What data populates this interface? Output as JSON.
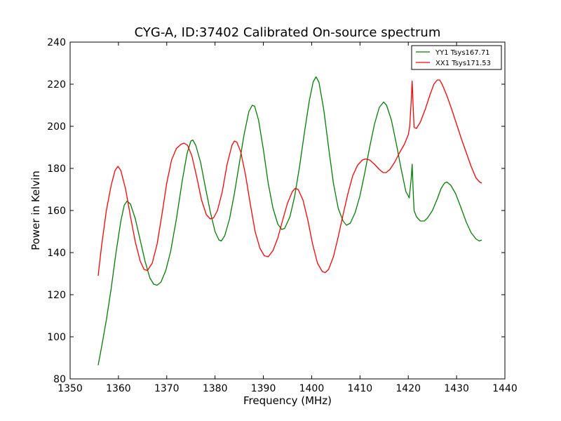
{
  "chart_data": {
    "type": "line",
    "title": "CYG-A, ID:37402 Calibrated On-source spectrum",
    "xlabel": "Frequency (MHz)",
    "ylabel": "Power in Kelvin",
    "xlim": [
      1350,
      1440
    ],
    "ylim": [
      80,
      240
    ],
    "xticks": [
      1350,
      1360,
      1370,
      1380,
      1390,
      1400,
      1410,
      1420,
      1430,
      1440
    ],
    "yticks": [
      80,
      100,
      120,
      140,
      160,
      180,
      200,
      220,
      240
    ],
    "grid": false,
    "legend_position": "top-right",
    "series": [
      {
        "name": "YY1 Tsys167.71",
        "color": "#008000",
        "points": [
          [
            1355.8,
            86.5
          ],
          [
            1356.5,
            95
          ],
          [
            1357.5,
            108
          ],
          [
            1358.5,
            123
          ],
          [
            1359.5,
            140
          ],
          [
            1360.5,
            155
          ],
          [
            1361.2,
            162.5
          ],
          [
            1361.8,
            164.5
          ],
          [
            1362.5,
            163
          ],
          [
            1363.5,
            156
          ],
          [
            1364.5,
            146
          ],
          [
            1365.5,
            136
          ],
          [
            1366.5,
            128
          ],
          [
            1367.3,
            125
          ],
          [
            1368.0,
            124.5
          ],
          [
            1368.8,
            126
          ],
          [
            1369.8,
            131.5
          ],
          [
            1370.8,
            140.5
          ],
          [
            1372.0,
            156
          ],
          [
            1373.2,
            174
          ],
          [
            1374.2,
            187
          ],
          [
            1375.0,
            193
          ],
          [
            1375.4,
            193.5
          ],
          [
            1376.0,
            191
          ],
          [
            1377.0,
            183
          ],
          [
            1378.0,
            171
          ],
          [
            1379.0,
            159.5
          ],
          [
            1380.0,
            150
          ],
          [
            1380.8,
            146
          ],
          [
            1381.3,
            145.5
          ],
          [
            1382.0,
            148
          ],
          [
            1383.0,
            156
          ],
          [
            1384.0,
            168
          ],
          [
            1385.0,
            182
          ],
          [
            1386.0,
            196
          ],
          [
            1387.0,
            207
          ],
          [
            1387.7,
            210
          ],
          [
            1388.2,
            209.5
          ],
          [
            1389.0,
            203
          ],
          [
            1390.0,
            189
          ],
          [
            1391.0,
            173
          ],
          [
            1392.0,
            161
          ],
          [
            1393.0,
            153.5
          ],
          [
            1393.8,
            151
          ],
          [
            1394.4,
            151.5
          ],
          [
            1395.5,
            157
          ],
          [
            1396.5,
            167
          ],
          [
            1397.5,
            181
          ],
          [
            1398.5,
            197
          ],
          [
            1399.5,
            212
          ],
          [
            1400.3,
            221
          ],
          [
            1400.9,
            223.5
          ],
          [
            1401.5,
            221
          ],
          [
            1402.5,
            208
          ],
          [
            1403.5,
            190
          ],
          [
            1404.5,
            173
          ],
          [
            1405.5,
            161
          ],
          [
            1406.5,
            155
          ],
          [
            1407.2,
            153
          ],
          [
            1408.0,
            154
          ],
          [
            1409.0,
            159
          ],
          [
            1410.0,
            167
          ],
          [
            1411.0,
            178
          ],
          [
            1412.0,
            190
          ],
          [
            1413.0,
            201
          ],
          [
            1414.0,
            209
          ],
          [
            1414.9,
            211.5
          ],
          [
            1415.5,
            210
          ],
          [
            1416.5,
            203
          ],
          [
            1417.5,
            192
          ],
          [
            1418.5,
            180
          ],
          [
            1419.5,
            169
          ],
          [
            1420.2,
            166
          ],
          [
            1420.6,
            175
          ],
          [
            1420.8,
            182
          ],
          [
            1421.0,
            170
          ],
          [
            1421.2,
            160
          ],
          [
            1421.7,
            157
          ],
          [
            1422.5,
            155
          ],
          [
            1423.3,
            155
          ],
          [
            1424.0,
            156.5
          ],
          [
            1425.0,
            160
          ],
          [
            1426.0,
            165.5
          ],
          [
            1426.8,
            170.5
          ],
          [
            1427.5,
            173
          ],
          [
            1428.0,
            173.5
          ],
          [
            1428.8,
            172
          ],
          [
            1429.8,
            168
          ],
          [
            1430.8,
            162
          ],
          [
            1432.0,
            154.5
          ],
          [
            1433.0,
            149.5
          ],
          [
            1434.0,
            146.5
          ],
          [
            1434.7,
            145.5
          ],
          [
            1435.2,
            146
          ]
        ]
      },
      {
        "name": "XX1 Tsys171.53",
        "color": "#ff0000",
        "points": [
          [
            1355.8,
            129
          ],
          [
            1356.5,
            143
          ],
          [
            1357.5,
            160
          ],
          [
            1358.5,
            172
          ],
          [
            1359.3,
            179
          ],
          [
            1359.9,
            181
          ],
          [
            1360.5,
            179
          ],
          [
            1361.5,
            170
          ],
          [
            1362.5,
            157
          ],
          [
            1363.5,
            145
          ],
          [
            1364.5,
            136
          ],
          [
            1365.3,
            132
          ],
          [
            1366.0,
            131.5
          ],
          [
            1367.0,
            135
          ],
          [
            1368.0,
            144
          ],
          [
            1369.0,
            158
          ],
          [
            1370.0,
            173
          ],
          [
            1371.0,
            184
          ],
          [
            1372.0,
            189.5
          ],
          [
            1373.0,
            191.5
          ],
          [
            1373.6,
            192
          ],
          [
            1374.3,
            191
          ],
          [
            1375.2,
            186
          ],
          [
            1376.2,
            176
          ],
          [
            1377.2,
            165
          ],
          [
            1378.2,
            158
          ],
          [
            1379.0,
            156
          ],
          [
            1379.7,
            156.5
          ],
          [
            1380.5,
            160
          ],
          [
            1381.5,
            169
          ],
          [
            1382.5,
            182
          ],
          [
            1383.5,
            191
          ],
          [
            1384.0,
            193
          ],
          [
            1384.5,
            192.5
          ],
          [
            1385.3,
            188
          ],
          [
            1386.3,
            177
          ],
          [
            1387.3,
            163
          ],
          [
            1388.3,
            150
          ],
          [
            1389.3,
            142
          ],
          [
            1390.2,
            138.5
          ],
          [
            1391.0,
            138
          ],
          [
            1392.0,
            141
          ],
          [
            1393.0,
            147
          ],
          [
            1394.0,
            155.5
          ],
          [
            1395.0,
            163.5
          ],
          [
            1396.0,
            169
          ],
          [
            1396.6,
            170.5
          ],
          [
            1397.2,
            170
          ],
          [
            1398.2,
            165
          ],
          [
            1399.2,
            155.5
          ],
          [
            1400.2,
            144
          ],
          [
            1401.2,
            135
          ],
          [
            1402.2,
            131
          ],
          [
            1402.8,
            130.5
          ],
          [
            1403.5,
            132
          ],
          [
            1404.5,
            138
          ],
          [
            1405.5,
            147.5
          ],
          [
            1406.5,
            158
          ],
          [
            1407.5,
            168
          ],
          [
            1408.5,
            176.5
          ],
          [
            1409.5,
            181.5
          ],
          [
            1410.5,
            184
          ],
          [
            1411.2,
            184.5
          ],
          [
            1412.0,
            184
          ],
          [
            1413.0,
            182
          ],
          [
            1414.0,
            179.5
          ],
          [
            1414.8,
            178
          ],
          [
            1415.4,
            178
          ],
          [
            1416.2,
            179.5
          ],
          [
            1417.2,
            183
          ],
          [
            1418.2,
            187.5
          ],
          [
            1419.2,
            191.5
          ],
          [
            1420.0,
            196
          ],
          [
            1420.3,
            200
          ],
          [
            1420.6,
            212
          ],
          [
            1420.8,
            221.5
          ],
          [
            1421.0,
            210
          ],
          [
            1421.2,
            199.5
          ],
          [
            1421.7,
            199
          ],
          [
            1422.5,
            202
          ],
          [
            1423.5,
            208
          ],
          [
            1424.5,
            215
          ],
          [
            1425.3,
            220
          ],
          [
            1426.0,
            222
          ],
          [
            1426.5,
            222
          ],
          [
            1427.0,
            220
          ],
          [
            1428.0,
            214.5
          ],
          [
            1429.0,
            208
          ],
          [
            1430.0,
            201
          ],
          [
            1431.0,
            194
          ],
          [
            1432.0,
            187.5
          ],
          [
            1433.0,
            181
          ],
          [
            1434.0,
            175.5
          ],
          [
            1434.8,
            173.5
          ],
          [
            1435.2,
            173
          ]
        ]
      }
    ]
  }
}
